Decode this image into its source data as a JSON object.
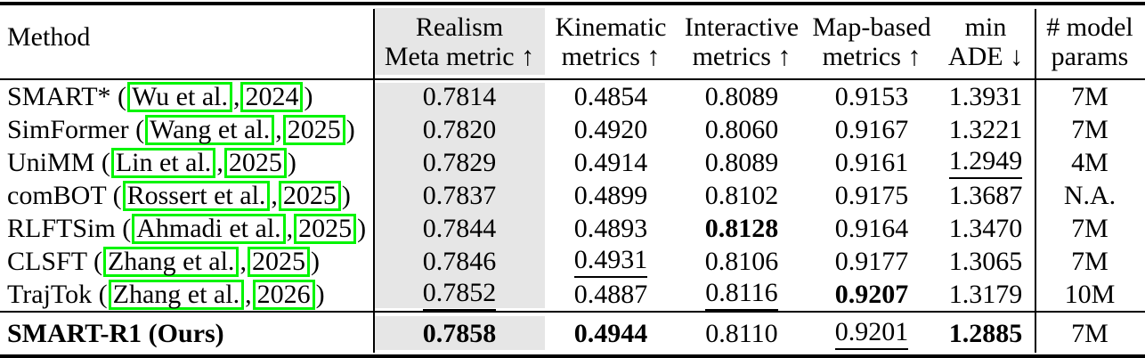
{
  "colors": {
    "link_box_green": "#00f400",
    "column_shade_gray": "#e6e6e6",
    "rule_black": "#000000"
  },
  "header": {
    "method": "Method",
    "cols": [
      {
        "l1": "Realism",
        "l2": "Meta metric ↑"
      },
      {
        "l1": "Kinematic",
        "l2": "metrics ↑"
      },
      {
        "l1": "Interactive",
        "l2": "metrics ↑"
      },
      {
        "l1": "Map-based",
        "l2": "metrics ↑"
      },
      {
        "l1": "min",
        "l2": "ADE ↓"
      },
      {
        "l1": "# model",
        "l2": "params"
      }
    ]
  },
  "rows": [
    {
      "method": {
        "prefix": "SMART* (",
        "author": "Wu et al.",
        "sep": ", ",
        "year": "2024",
        "suffix": ")"
      },
      "cells": [
        {
          "v": "0.7814",
          "s": ""
        },
        {
          "v": "0.4854",
          "s": ""
        },
        {
          "v": "0.8089",
          "s": ""
        },
        {
          "v": "0.9153",
          "s": ""
        },
        {
          "v": "1.3931",
          "s": ""
        },
        {
          "v": "7M",
          "s": ""
        }
      ]
    },
    {
      "method": {
        "prefix": "SimFormer (",
        "author": "Wang et al.",
        "sep": ", ",
        "year": "2025",
        "suffix": ")"
      },
      "cells": [
        {
          "v": "0.7820",
          "s": ""
        },
        {
          "v": "0.4920",
          "s": ""
        },
        {
          "v": "0.8060",
          "s": ""
        },
        {
          "v": "0.9167",
          "s": ""
        },
        {
          "v": "1.3221",
          "s": ""
        },
        {
          "v": "7M",
          "s": ""
        }
      ]
    },
    {
      "method": {
        "prefix": "UniMM (",
        "author": "Lin et al.",
        "sep": ", ",
        "year": "2025",
        "suffix": ")"
      },
      "cells": [
        {
          "v": "0.7829",
          "s": ""
        },
        {
          "v": "0.4914",
          "s": ""
        },
        {
          "v": "0.8089",
          "s": ""
        },
        {
          "v": "0.9161",
          "s": ""
        },
        {
          "v": "1.2949",
          "s": "u"
        },
        {
          "v": "4M",
          "s": ""
        }
      ]
    },
    {
      "method": {
        "prefix": "comBOT (",
        "author": "Rossert et al.",
        "sep": ", ",
        "year": "2025",
        "suffix": ")"
      },
      "cells": [
        {
          "v": "0.7837",
          "s": ""
        },
        {
          "v": "0.4899",
          "s": ""
        },
        {
          "v": "0.8102",
          "s": ""
        },
        {
          "v": "0.9175",
          "s": ""
        },
        {
          "v": "1.3687",
          "s": ""
        },
        {
          "v": "N.A.",
          "s": ""
        }
      ]
    },
    {
      "method": {
        "prefix": "RLFTSim (",
        "author": "Ahmadi et al.",
        "sep": ", ",
        "year": "2025",
        "suffix": ")"
      },
      "cells": [
        {
          "v": "0.7844",
          "s": ""
        },
        {
          "v": "0.4893",
          "s": ""
        },
        {
          "v": "0.8128",
          "s": "b"
        },
        {
          "v": "0.9164",
          "s": ""
        },
        {
          "v": "1.3470",
          "s": ""
        },
        {
          "v": "7M",
          "s": ""
        }
      ]
    },
    {
      "method": {
        "prefix": "CLSFT (",
        "author": "Zhang et al.",
        "sep": ", ",
        "year": "2025",
        "suffix": ")"
      },
      "cells": [
        {
          "v": "0.7846",
          "s": ""
        },
        {
          "v": "0.4931",
          "s": "u"
        },
        {
          "v": "0.8106",
          "s": ""
        },
        {
          "v": "0.9177",
          "s": ""
        },
        {
          "v": "1.3065",
          "s": ""
        },
        {
          "v": "7M",
          "s": ""
        }
      ]
    },
    {
      "method": {
        "prefix": "TrajTok (",
        "author": "Zhang et al.",
        "sep": ", ",
        "year": "2026",
        "suffix": ")"
      },
      "cells": [
        {
          "v": "0.7852",
          "s": "u"
        },
        {
          "v": "0.4887",
          "s": ""
        },
        {
          "v": "0.8116",
          "s": "u"
        },
        {
          "v": "0.9207",
          "s": "b"
        },
        {
          "v": "1.3179",
          "s": ""
        },
        {
          "v": "10M",
          "s": ""
        }
      ]
    }
  ],
  "ours_row": {
    "method": "SMART-R1 (Ours)",
    "cells": [
      {
        "v": "0.7858",
        "s": "b"
      },
      {
        "v": "0.4944",
        "s": "b"
      },
      {
        "v": "0.8110",
        "s": ""
      },
      {
        "v": "0.9201",
        "s": "u"
      },
      {
        "v": "1.2885",
        "s": "b"
      },
      {
        "v": "7M",
        "s": ""
      }
    ]
  }
}
